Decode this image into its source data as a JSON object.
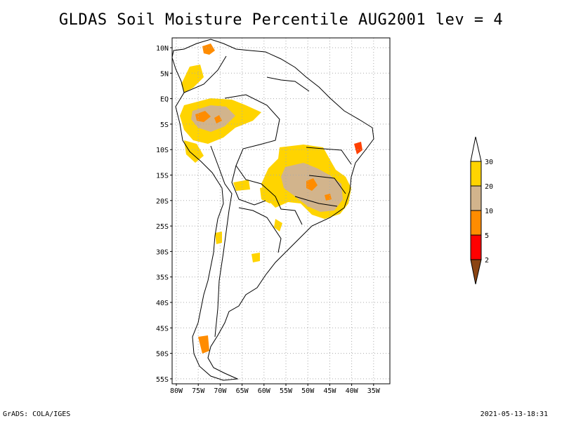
{
  "title": "GLDAS Soil Moisture Percentile AUG2001 lev = 4",
  "footer_left": "GrADS: COLA/IGES",
  "footer_right": "2021-05-13-18:31",
  "map": {
    "lat_range": [
      -56,
      12
    ],
    "lon_range": [
      -81,
      -33
    ],
    "lat_ticks": [
      "10N",
      "5N",
      "EQ",
      "5S",
      "10S",
      "15S",
      "20S",
      "25S",
      "30S",
      "35S",
      "40S",
      "45S",
      "50S",
      "55S"
    ],
    "lon_ticks": [
      "80W",
      "75W",
      "70W",
      "65W",
      "60W",
      "55W",
      "50W",
      "45W",
      "40W",
      "35W"
    ],
    "grid": true
  },
  "legend": {
    "labels": [
      "30",
      "20",
      "10",
      "5",
      "2"
    ],
    "colors": [
      "#ffffff",
      "#ffd400",
      "#d2b48c",
      "#ff8c00",
      "#ff0000",
      "#8b4513"
    ]
  }
}
